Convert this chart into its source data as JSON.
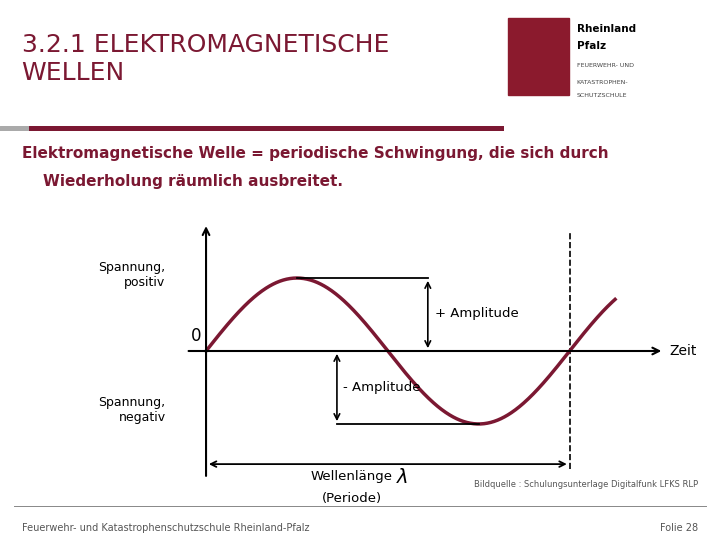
{
  "title": "3.2.1 ELEKTROMAGNETISCHE\nWELLEN",
  "title_color": "#7B1832",
  "title_fontsize": 18,
  "subtitle_line1": "Elektromagnetische Welle = periodische Schwingung, die sich durch",
  "subtitle_line2": "    Wiederholung räumlich ausbreitet.",
  "subtitle_color": "#7B1832",
  "subtitle_fontsize": 11,
  "wave_color": "#7B1832",
  "wave_linewidth": 2.5,
  "background_color": "#ffffff",
  "axis_color": "#000000",
  "divider_color_left": "#aaaaaa",
  "divider_color_right": "#7B1832",
  "label_spannung_positiv": "Spannung,\npositiv",
  "label_spannung_negativ": "Spannung,\nnegativ",
  "label_zeit": "Zeit",
  "label_zero": "0",
  "label_plus_amplitude": "+ Amplitude",
  "label_minus_amplitude": "- Amplitude",
  "label_wellenlaenge": "Wellenlänge",
  "label_periode": "(Periode)",
  "label_lambda": "λ",
  "footer_left": "Feuerwehr- und Katastrophenschutzschule Rheinland-Pfalz",
  "footer_right": "Folie 28",
  "source_text": "Bildquelle : Schulungsunterlage Digitalfunk LFKS RLP"
}
